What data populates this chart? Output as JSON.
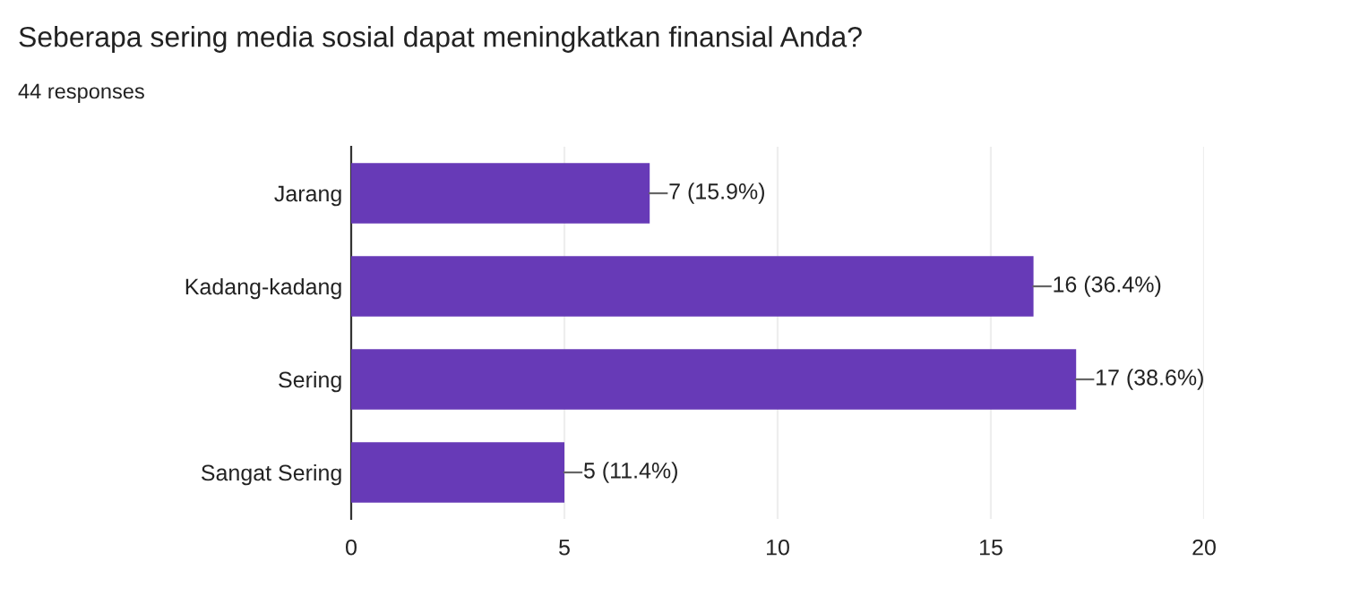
{
  "chart_data": {
    "type": "bar",
    "orientation": "horizontal",
    "title": "Seberapa sering media sosial dapat meningkatkan finansial Anda?",
    "subtitle": "44 responses",
    "categories": [
      "Jarang",
      "Kadang-kadang",
      "Sering",
      "Sangat Sering"
    ],
    "values": [
      7,
      16,
      17,
      5
    ],
    "color": "#673ab7",
    "value_labels": [
      "7 (15.9%)",
      "16 (36.4%)",
      "17 (38.6%)",
      "5 (11.4%)"
    ],
    "xlim": [
      0,
      20
    ],
    "xticks": [
      0,
      5,
      10,
      15,
      20
    ],
    "grid": "x",
    "legend": false
  }
}
